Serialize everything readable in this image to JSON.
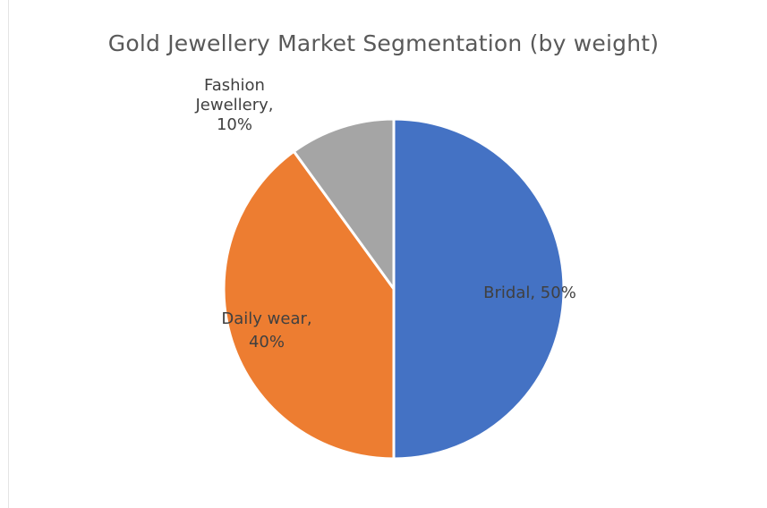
{
  "chart_data": {
    "type": "pie",
    "title": "Gold Jewellery Market Segmentation (by weight)",
    "categories": [
      "Bridal",
      "Daily wear",
      "Fashion Jewellery"
    ],
    "values": [
      50,
      40,
      10
    ],
    "unit": "%",
    "labels": [
      {
        "lines": [
          "Bridal, 50%"
        ],
        "placement": "inside"
      },
      {
        "lines": [
          "Daily wear,",
          "40%"
        ],
        "placement": "inside"
      },
      {
        "lines": [
          "Fashion",
          "Jewellery,",
          "10%"
        ],
        "placement": "outside"
      }
    ],
    "colors": [
      "#4472c4",
      "#ed7d31",
      "#a5a5a5"
    ],
    "legend": "none"
  }
}
